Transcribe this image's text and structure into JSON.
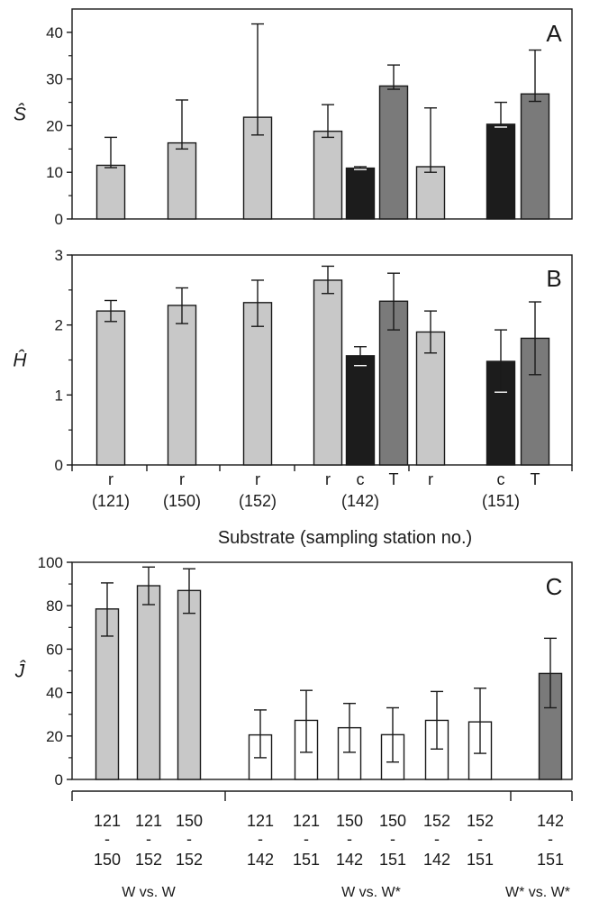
{
  "chart_data": [
    {
      "type": "bar",
      "panel_label": "A",
      "ylabel": "Ŝ",
      "ylim": [
        0,
        45
      ],
      "yticks": [
        0,
        10,
        20,
        30,
        40
      ],
      "grid": false,
      "bars": [
        {
          "substrate": "r",
          "station": "121",
          "value": 11.5,
          "err_low": 11.0,
          "err_high": 17.5,
          "color": "#c8c8c8"
        },
        {
          "substrate": "r",
          "station": "150",
          "value": 16.3,
          "err_low": 15.0,
          "err_high": 25.5,
          "color": "#c8c8c8"
        },
        {
          "substrate": "r",
          "station": "152",
          "value": 21.8,
          "err_low": 18.0,
          "err_high": 41.8,
          "color": "#c8c8c8"
        },
        {
          "substrate": "r",
          "station": "142",
          "value": 18.8,
          "err_low": 17.5,
          "err_high": 24.5,
          "color": "#c8c8c8"
        },
        {
          "substrate": "c",
          "station": "142",
          "value": 10.9,
          "err_low": 10.6,
          "err_high": 11.2,
          "color": "#1c1c1c"
        },
        {
          "substrate": "T",
          "station": "142",
          "value": 28.5,
          "err_low": 27.8,
          "err_high": 33.0,
          "color": "#7a7a7a"
        },
        {
          "substrate": "r",
          "station": "151",
          "value": 11.2,
          "err_low": 10.0,
          "err_high": 23.8,
          "color": "#c8c8c8"
        },
        {
          "substrate": "c",
          "station": "151",
          "value": 20.3,
          "err_low": 19.7,
          "err_high": 25.0,
          "color": "#1c1c1c"
        },
        {
          "substrate": "T",
          "station": "151",
          "value": 26.8,
          "err_low": 25.2,
          "err_high": 36.2,
          "color": "#7a7a7a"
        }
      ]
    },
    {
      "type": "bar",
      "panel_label": "B",
      "ylabel": "Ĥ",
      "ylim": [
        0,
        3
      ],
      "yticks": [
        0,
        1,
        2,
        3
      ],
      "grid": false,
      "bars": [
        {
          "substrate": "r",
          "station": "121",
          "value": 2.2,
          "err_low": 2.05,
          "err_high": 2.35,
          "color": "#c8c8c8"
        },
        {
          "substrate": "r",
          "station": "150",
          "value": 2.28,
          "err_low": 2.02,
          "err_high": 2.53,
          "color": "#c8c8c8"
        },
        {
          "substrate": "r",
          "station": "152",
          "value": 2.32,
          "err_low": 1.98,
          "err_high": 2.64,
          "color": "#c8c8c8"
        },
        {
          "substrate": "r",
          "station": "142",
          "value": 2.64,
          "err_low": 2.45,
          "err_high": 2.84,
          "color": "#c8c8c8"
        },
        {
          "substrate": "c",
          "station": "142",
          "value": 1.56,
          "err_low": 1.42,
          "err_high": 1.69,
          "color": "#1c1c1c"
        },
        {
          "substrate": "T",
          "station": "142",
          "value": 2.34,
          "err_low": 1.93,
          "err_high": 2.74,
          "color": "#7a7a7a"
        },
        {
          "substrate": "r",
          "station": "151",
          "value": 1.9,
          "err_low": 1.6,
          "err_high": 2.2,
          "color": "#c8c8c8"
        },
        {
          "substrate": "c",
          "station": "151",
          "value": 1.48,
          "err_low": 1.04,
          "err_high": 1.93,
          "color": "#1c1c1c"
        },
        {
          "substrate": "T",
          "station": "151",
          "value": 1.81,
          "err_low": 1.29,
          "err_high": 2.33,
          "color": "#7a7a7a"
        }
      ]
    },
    {
      "type": "bar",
      "panel_label": "C",
      "ylabel": "Ĵ",
      "ylim": [
        0,
        100
      ],
      "yticks": [
        0,
        20,
        40,
        60,
        80,
        100
      ],
      "grid": false,
      "bars": [
        {
          "top": "121",
          "bottom": "150",
          "value": 78.5,
          "err_low": 66.0,
          "err_high": 90.5,
          "color": "#c8c8c8"
        },
        {
          "top": "121",
          "bottom": "152",
          "value": 89.2,
          "err_low": 80.5,
          "err_high": 97.8,
          "color": "#c8c8c8"
        },
        {
          "top": "150",
          "bottom": "152",
          "value": 87.0,
          "err_low": 76.5,
          "err_high": 97.0,
          "color": "#c8c8c8"
        },
        {
          "top": "121",
          "bottom": "142",
          "value": 20.5,
          "err_low": 10.0,
          "err_high": 32.0,
          "color": "#ffffff"
        },
        {
          "top": "121",
          "bottom": "151",
          "value": 27.2,
          "err_low": 12.5,
          "err_high": 41.0,
          "color": "#ffffff"
        },
        {
          "top": "150",
          "bottom": "142",
          "value": 23.8,
          "err_low": 12.5,
          "err_high": 35.0,
          "color": "#ffffff"
        },
        {
          "top": "150",
          "bottom": "151",
          "value": 20.6,
          "err_low": 8.0,
          "err_high": 33.0,
          "color": "#ffffff"
        },
        {
          "top": "152",
          "bottom": "142",
          "value": 27.2,
          "err_low": 14.0,
          "err_high": 40.5,
          "color": "#ffffff"
        },
        {
          "top": "152",
          "bottom": "151",
          "value": 26.5,
          "err_low": 12.0,
          "err_high": 42.0,
          "color": "#ffffff"
        },
        {
          "top": "142",
          "bottom": "151",
          "value": 48.8,
          "err_low": 33.0,
          "err_high": 65.0,
          "color": "#7a7a7a"
        }
      ],
      "group_labels": [
        "W vs. W",
        "W vs. W*",
        "W* vs. W*"
      ]
    }
  ],
  "ab_xaxis": {
    "xlabel": "Substrate (sampling station no.)",
    "station_labels": [
      "(121)",
      "(150)",
      "(152)",
      "(142)",
      "(151)"
    ]
  },
  "c_xaxis": {
    "dash": "-"
  }
}
